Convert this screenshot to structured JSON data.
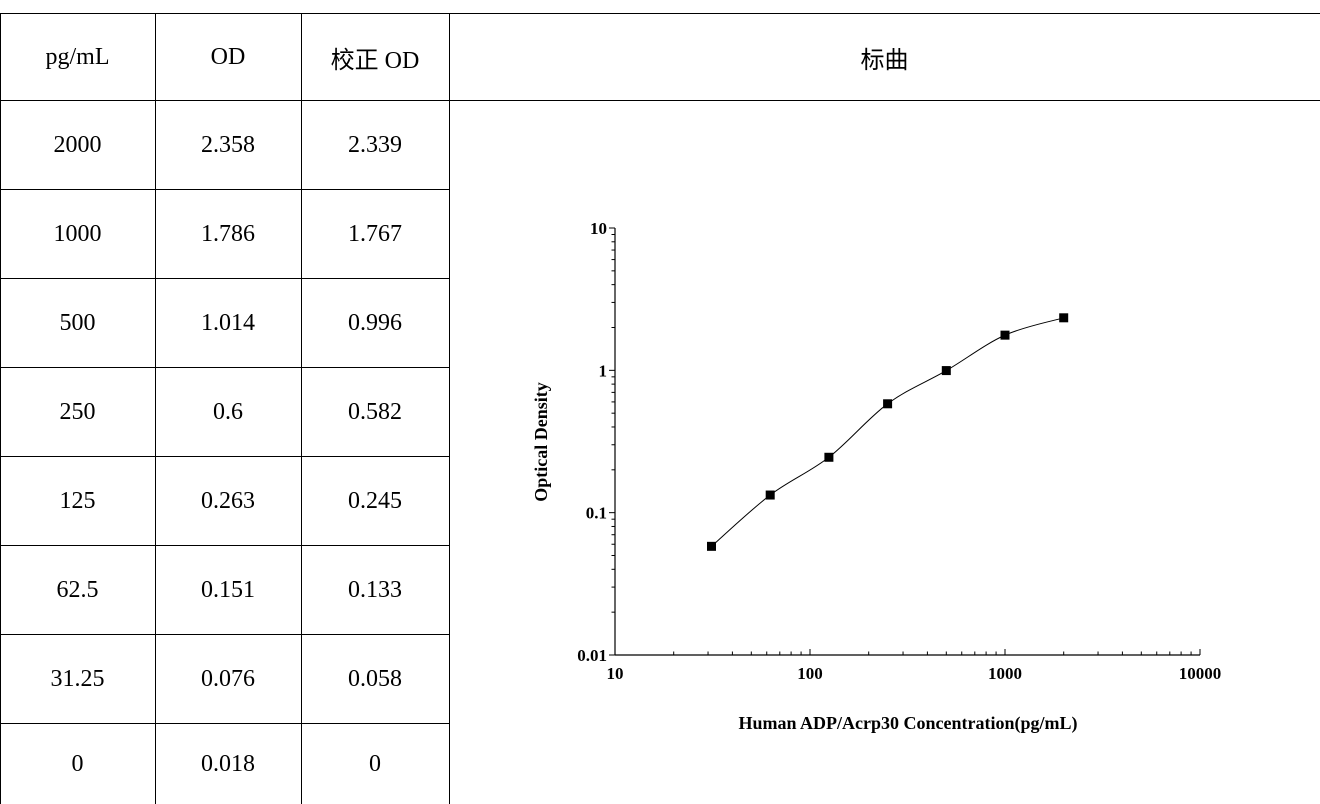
{
  "table": {
    "headers": [
      "pg/mL",
      "OD",
      "校正 OD",
      "标曲"
    ],
    "rows": [
      [
        "2000",
        "2.358",
        "2.339"
      ],
      [
        "1000",
        "1.786",
        "1.767"
      ],
      [
        "500",
        "1.014",
        "0.996"
      ],
      [
        "250",
        "0.6",
        "0.582"
      ],
      [
        "125",
        "0.263",
        "0.245"
      ],
      [
        "62.5",
        "0.151",
        "0.133"
      ],
      [
        "31.25",
        "0.076",
        "0.058"
      ],
      [
        "0",
        "0.018",
        "0"
      ]
    ]
  },
  "chart_data": {
    "type": "scatter",
    "xlabel": "Human ADP/Acrp30 Concentration(pg/mL)",
    "ylabel": "Optical Density",
    "xscale": "log",
    "yscale": "log",
    "xlim": [
      10,
      10000
    ],
    "ylim": [
      0.01,
      10
    ],
    "x_ticks": [
      "10",
      "100",
      "1000",
      "10000"
    ],
    "y_ticks": [
      "0.01",
      "0.1",
      "1",
      "10"
    ],
    "grid": false,
    "fit_line": true,
    "marker": "square",
    "marker_color": "#000000",
    "x": [
      31.25,
      62.5,
      125,
      250,
      500,
      1000,
      2000
    ],
    "y": [
      0.058,
      0.133,
      0.245,
      0.582,
      0.996,
      1.767,
      2.339
    ]
  }
}
